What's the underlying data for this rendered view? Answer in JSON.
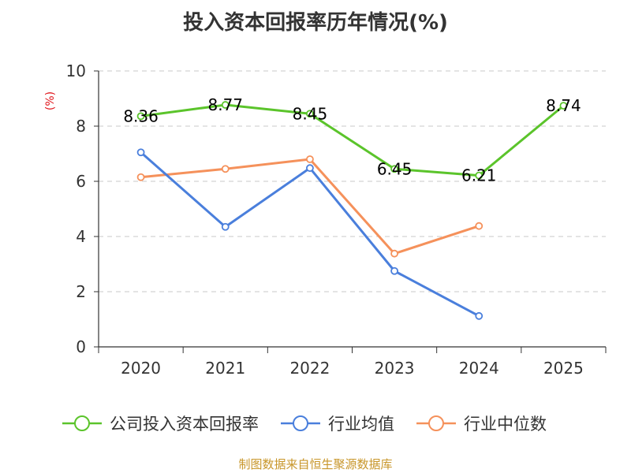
{
  "chart_data": {
    "type": "line",
    "title": "投入资本回报率历年情况(%)",
    "ylabel": "(%)",
    "xlabel": "",
    "categories": [
      "2020",
      "2021",
      "2022",
      "2023",
      "2024",
      "2025"
    ],
    "ylim": [
      0,
      10
    ],
    "yticks": [
      0,
      2,
      4,
      6,
      8,
      10
    ],
    "grid": true,
    "legend_position": "bottom",
    "series": [
      {
        "name": "公司投入资本回报率",
        "color": "#5bc42b",
        "values": [
          8.36,
          8.77,
          8.45,
          6.45,
          6.21,
          8.74
        ],
        "labels": [
          "8.36",
          "8.77",
          "8.45",
          "6.45",
          "6.21",
          "8.74"
        ]
      },
      {
        "name": "行业均值",
        "color": "#4a7fdc",
        "values": [
          7.05,
          4.35,
          6.48,
          2.75,
          1.12,
          null
        ]
      },
      {
        "name": "行业中位数",
        "color": "#f5915b",
        "values": [
          6.15,
          6.45,
          6.8,
          3.38,
          4.38,
          null
        ]
      }
    ]
  },
  "source": "制图数据来自恒生聚源数据库"
}
